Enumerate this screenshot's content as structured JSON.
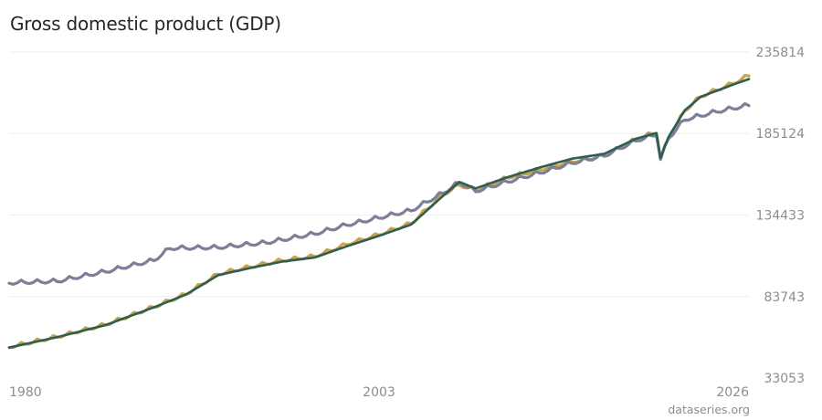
{
  "title": "Gross domestic product (GDP)",
  "credit": "dataseries.org",
  "colors": {
    "series_a": "#c9a24b",
    "series_b": "#7b7f98",
    "trend": "#2e5d52",
    "grid": "#eeeeee",
    "text": "#8d8d8d"
  },
  "chart_data": {
    "type": "line",
    "title": "Gross domestic product (GDP)",
    "xlabel": "",
    "ylabel": "",
    "x_ticks": [
      "1980",
      "2003",
      "2026"
    ],
    "y_ticks": [
      "235814",
      "185124",
      "134433",
      "83743",
      "33053"
    ],
    "xlim": [
      1980,
      2026
    ],
    "ylim": [
      33053,
      235814
    ],
    "grid": true,
    "legend": "none",
    "series": [
      {
        "color": "#c9a24b",
        "style": "quarterly-seasonal",
        "points": [
          [
            1980,
            52000
          ],
          [
            1983,
            58500
          ],
          [
            1986,
            66000
          ],
          [
            1989,
            77000
          ],
          [
            1991,
            85000
          ],
          [
            1993,
            97500
          ],
          [
            1995,
            102000
          ],
          [
            1997,
            106000
          ],
          [
            1999,
            108500
          ],
          [
            2001,
            116000
          ],
          [
            2003,
            122000
          ],
          [
            2005,
            129000
          ],
          [
            2007,
            147000
          ],
          [
            2008,
            153000
          ],
          [
            2009,
            149500
          ],
          [
            2011,
            157500
          ],
          [
            2013,
            162500
          ],
          [
            2015,
            167500
          ],
          [
            2017,
            171000
          ],
          [
            2019,
            181500
          ],
          [
            2020.3,
            186000
          ],
          [
            2020.5,
            169000
          ],
          [
            2021,
            182000
          ],
          [
            2022,
            199000
          ],
          [
            2023,
            208000
          ],
          [
            2025,
            216000
          ],
          [
            2026,
            221000
          ]
        ]
      },
      {
        "color": "#7b7f98",
        "style": "quarterly-seasonal",
        "points": [
          [
            1980,
            92000
          ],
          [
            1983,
            93000
          ],
          [
            1986,
            99000
          ],
          [
            1989,
            106000
          ],
          [
            1990,
            113500
          ],
          [
            1993,
            114000
          ],
          [
            1996,
            117000
          ],
          [
            1999,
            122500
          ],
          [
            2001,
            128000
          ],
          [
            2003,
            132500
          ],
          [
            2005,
            137000
          ],
          [
            2007,
            148000
          ],
          [
            2008,
            154500
          ],
          [
            2009,
            149000
          ],
          [
            2011,
            155000
          ],
          [
            2013,
            160500
          ],
          [
            2015,
            166500
          ],
          [
            2017,
            171000
          ],
          [
            2019,
            180500
          ],
          [
            2020.3,
            184500
          ],
          [
            2020.5,
            169000
          ],
          [
            2021,
            182000
          ],
          [
            2022,
            193500
          ],
          [
            2024,
            198500
          ],
          [
            2026,
            202500
          ]
        ]
      },
      {
        "color": "#2e5d52",
        "style": "smooth-trend",
        "points": [
          [
            1980,
            52000
          ],
          [
            1983,
            58500
          ],
          [
            1986,
            66000
          ],
          [
            1989,
            77000
          ],
          [
            1991,
            85000
          ],
          [
            1993,
            97000
          ],
          [
            1995,
            101500
          ],
          [
            1997,
            105500
          ],
          [
            1999,
            108000
          ],
          [
            2001,
            115000
          ],
          [
            2003,
            121500
          ],
          [
            2005,
            128500
          ],
          [
            2007,
            146500
          ],
          [
            2008,
            155000
          ],
          [
            2009,
            151000
          ],
          [
            2011,
            158000
          ],
          [
            2013,
            164000
          ],
          [
            2015,
            169500
          ],
          [
            2017,
            172500
          ],
          [
            2019,
            182000
          ],
          [
            2020.3,
            185500
          ],
          [
            2020.5,
            170000
          ],
          [
            2021,
            183000
          ],
          [
            2022,
            199500
          ],
          [
            2023,
            208000
          ],
          [
            2025,
            215500
          ],
          [
            2026,
            219000
          ]
        ]
      }
    ]
  }
}
